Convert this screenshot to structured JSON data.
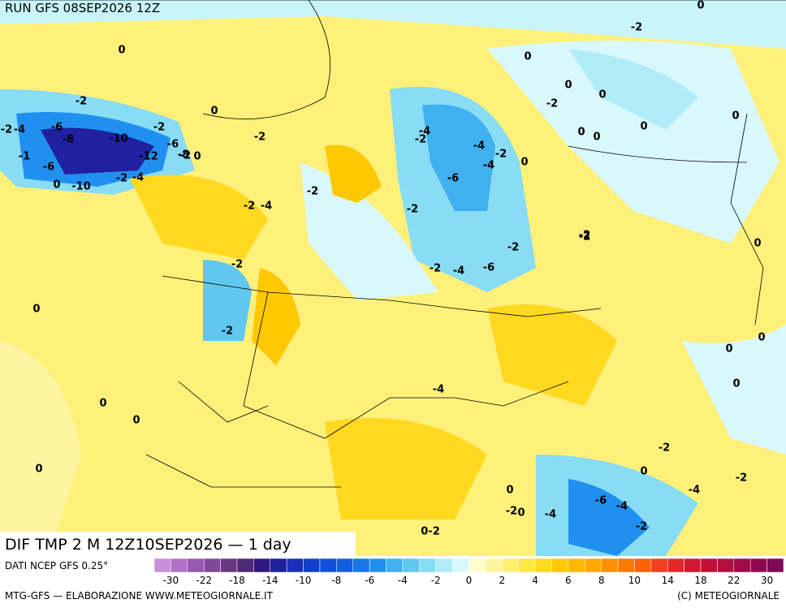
{
  "header": {
    "run": "RUN GFS 08SEP2026 12Z"
  },
  "map": {
    "title": "DIF TMP 2 M 12Z10SEP2026 — 1 day",
    "contour_labels": [
      "-2",
      "-4",
      "-6",
      "-8",
      "-10",
      "-12",
      "-1",
      "-6",
      "0",
      "-10",
      "-2",
      "-4",
      "-2",
      "-2",
      "-6",
      "-2",
      "-8",
      "0",
      "-2",
      "-2",
      "-4",
      "-2",
      "-2",
      "-4",
      "-2",
      "-4",
      "-6",
      "-2",
      "-4",
      "-6",
      "-2",
      "-2",
      "0",
      "0",
      "0",
      "-2",
      "0",
      "0",
      "0",
      "-2",
      "0",
      "0",
      "0",
      "0",
      "0",
      "0",
      "0",
      "0",
      "0",
      "0",
      "0",
      "-2",
      "-2",
      "-4",
      "-2",
      "-4",
      "-2",
      "0",
      "0",
      "-2",
      "-4",
      "-2",
      "-6",
      "-4",
      "-4",
      "-2",
      "0",
      "0",
      "0",
      "-2",
      "0-2"
    ]
  },
  "colorbar": {
    "source": "DATI NCEP GFS 0.25°",
    "ticks": [
      -30,
      -22,
      -18,
      -14,
      -10,
      -8,
      -6,
      -4,
      -2,
      0,
      2,
      4,
      6,
      8,
      10,
      14,
      18,
      22,
      30
    ],
    "colors": [
      "#c890d8",
      "#b070c8",
      "#9858b0",
      "#804898",
      "#683880",
      "#502878",
      "#301880",
      "#2020a0",
      "#1830b8",
      "#1040c8",
      "#1050d8",
      "#1060e0",
      "#1878e8",
      "#2090f0",
      "#40b0f0",
      "#60c8f0",
      "#88dcf4",
      "#b0ecf8",
      "#d8f8fc",
      "#fffcd0",
      "#fff4a0",
      "#fff070",
      "#ffe640",
      "#ffd820",
      "#ffc800",
      "#ffb800",
      "#ffa800",
      "#ff9000",
      "#ff7800",
      "#ff6000",
      "#f04020",
      "#e02828",
      "#d01830",
      "#c01038",
      "#b01040",
      "#a00c48",
      "#900850",
      "#800858"
    ]
  },
  "footer": {
    "left": "MTG-GFS — ELABORAZIONE WWW.METEOGIORNALE.IT",
    "right": "(C) METEOGIORNALE"
  }
}
